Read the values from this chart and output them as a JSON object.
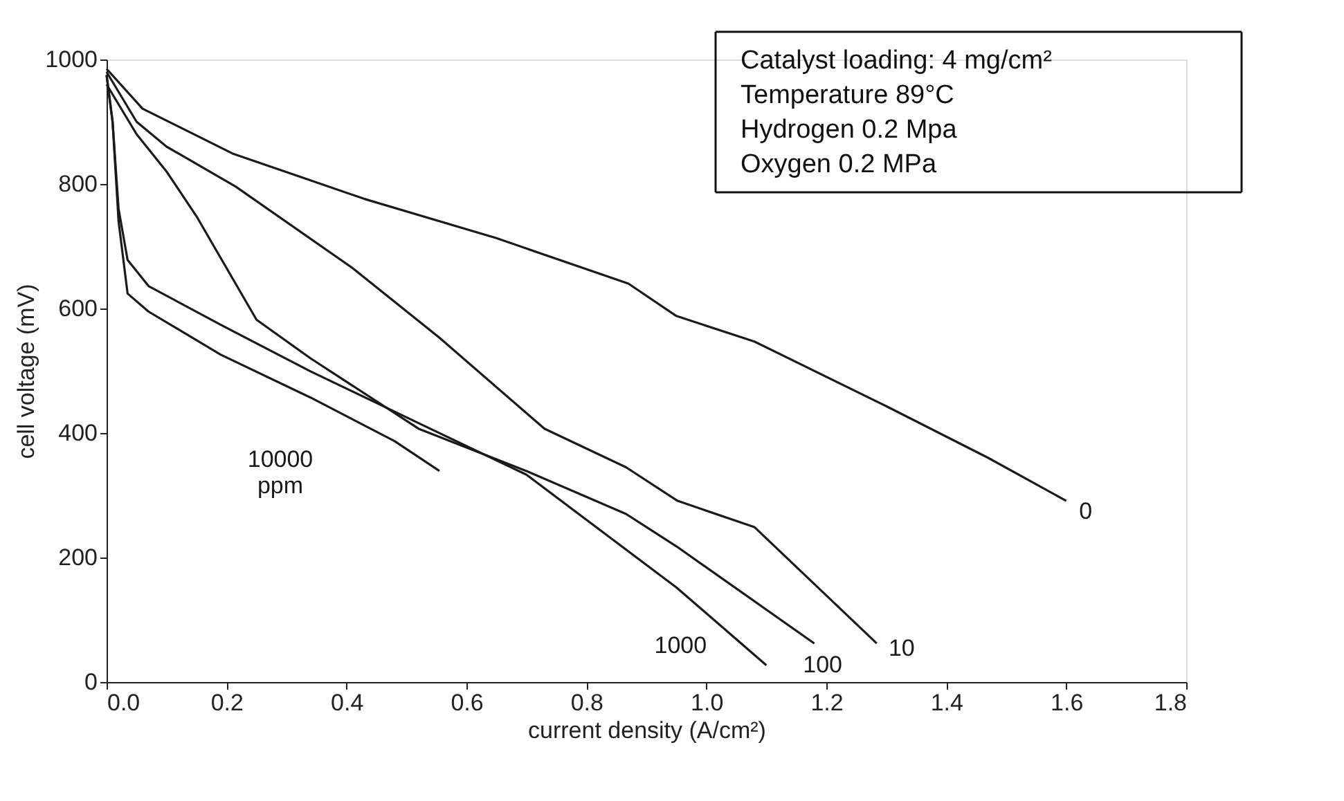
{
  "chart_data": {
    "type": "line",
    "xlabel": "current density (A/cm²)",
    "ylabel": "cell voltage (mV)",
    "xlim": [
      0,
      1.8
    ],
    "ylim": [
      0,
      1000
    ],
    "xticks": [
      {
        "value": 0,
        "label": "0.0"
      },
      0.2,
      0.4,
      0.6,
      0.8,
      {
        "value": 1,
        "label": "1.0"
      },
      1.2,
      1.4,
      1.6,
      1.8
    ],
    "yticks": [
      0,
      200,
      400,
      600,
      800,
      1000
    ],
    "grid": false,
    "marker": "none",
    "line_style": "solid",
    "series": [
      {
        "name": "0",
        "color": "#1a1a1a",
        "x": [
          0,
          0.06,
          0.21,
          0.43,
          0.65,
          0.87,
          0.95,
          1.08,
          1.3,
          1.47,
          1.6
        ],
        "values": [
          985,
          921,
          849,
          776,
          713,
          640,
          588,
          547,
          443,
          360,
          291
        ]
      },
      {
        "name": "10",
        "color": "#1a1a1a",
        "x": [
          0,
          0.05,
          0.1,
          0.215,
          0.41,
          0.555,
          0.73,
          0.866,
          0.952,
          1.08,
          1.284
        ],
        "values": [
          980,
          900,
          860,
          796,
          665,
          553,
          407,
          345,
          291,
          249,
          62
        ]
      },
      {
        "name": "100",
        "color": "#1a1a1a",
        "x": [
          0,
          0.05,
          0.1,
          0.15,
          0.25,
          0.34,
          0.52,
          0.7,
          0.866,
          0.95,
          1.18
        ],
        "values": [
          960,
          880,
          820,
          748,
          582,
          520,
          407,
          339,
          270,
          218,
          62
        ]
      },
      {
        "name": "1000",
        "color": "#1a1a1a",
        "x": [
          0,
          0.01,
          0.02,
          0.035,
          0.07,
          0.19,
          0.34,
          0.52,
          0.7,
          0.95,
          1.1
        ],
        "values": [
          975,
          900,
          760,
          678,
          636,
          574,
          499,
          416,
          333,
          152,
          27
        ]
      },
      {
        "name": "10000 ppm",
        "color": "#1a1a1a",
        "x": [
          0,
          0.01,
          0.02,
          0.035,
          0.07,
          0.19,
          0.34,
          0.48,
          0.555
        ],
        "values": [
          975,
          900,
          740,
          624,
          595,
          526,
          457,
          387,
          339
        ]
      }
    ],
    "annotations": [
      "Catalyst loading: 4 mg/cm²",
      "Temperature 89°C",
      "Hydrogen 0.2 Mpa",
      "Oxygen 0.2 MPa"
    ]
  }
}
